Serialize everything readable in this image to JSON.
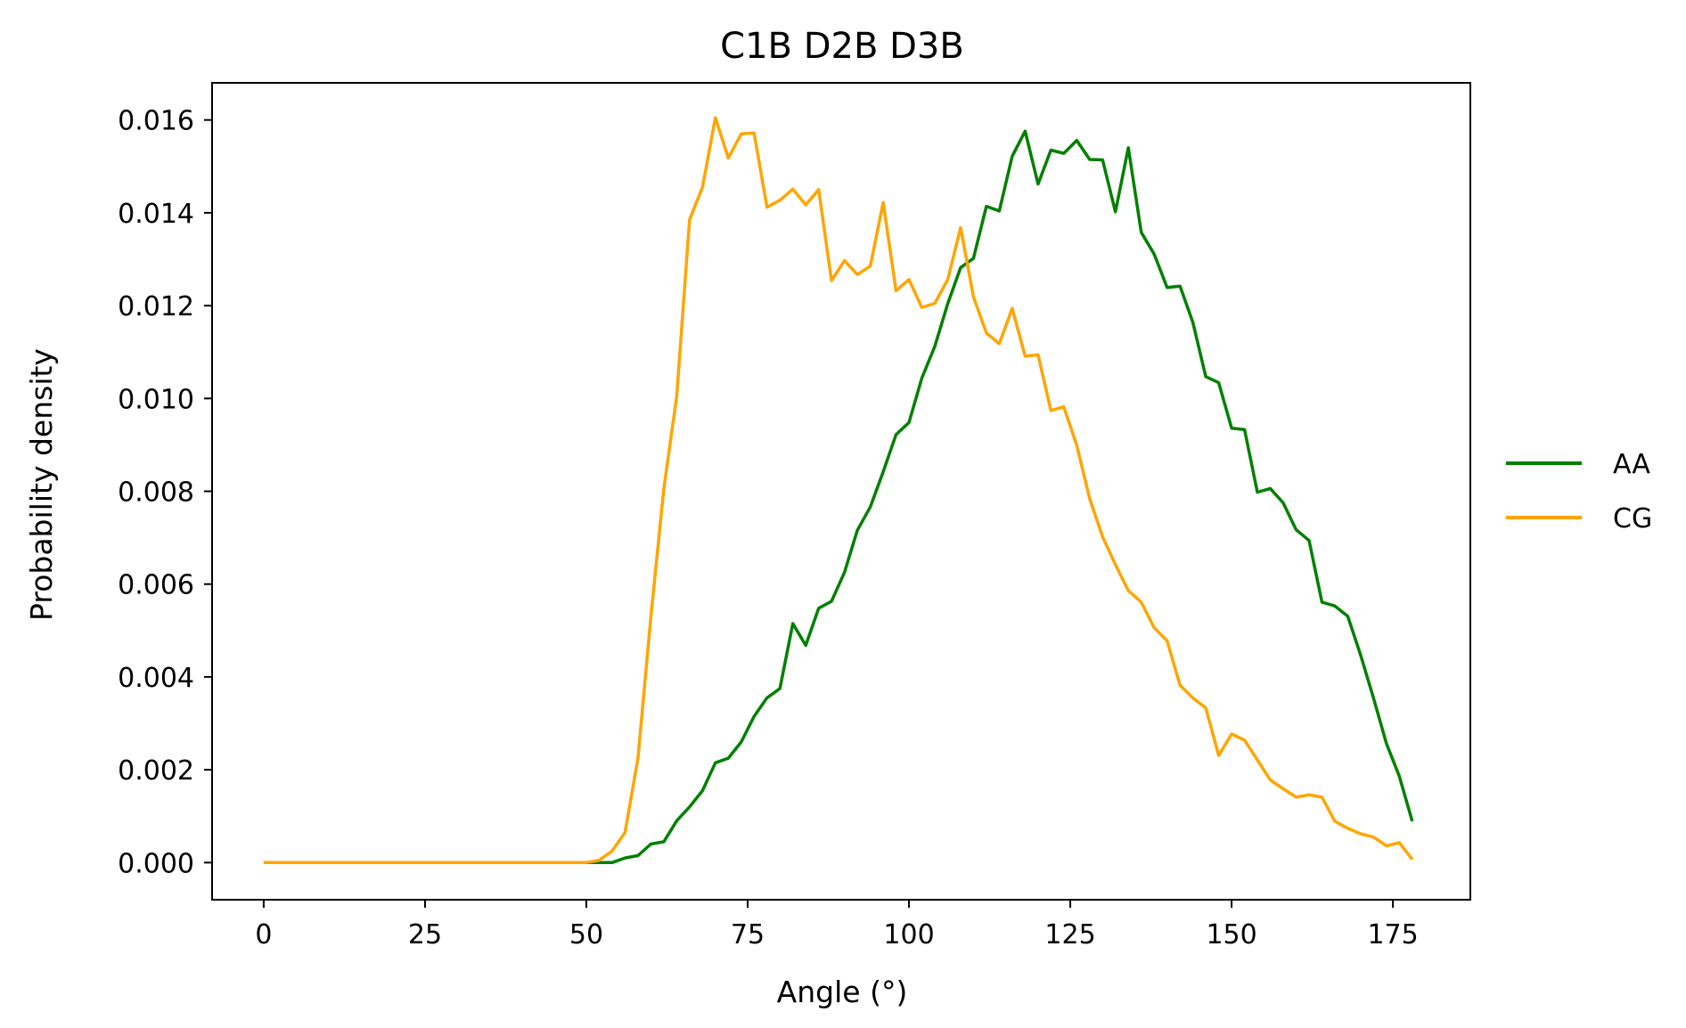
{
  "chart_data": {
    "type": "line",
    "title": "C1B D2B D3B",
    "xlabel": "Angle (°)",
    "ylabel": "Probability density",
    "xlim": [
      -8,
      187
    ],
    "ylim": [
      -0.0008,
      0.0168
    ],
    "xticks": [
      0,
      25,
      50,
      75,
      100,
      125,
      150,
      175
    ],
    "xtick_labels": [
      "0",
      "25",
      "50",
      "75",
      "100",
      "125",
      "150",
      "175"
    ],
    "yticks": [
      0.0,
      0.002,
      0.004,
      0.006,
      0.008,
      0.01,
      0.012,
      0.014,
      0.016
    ],
    "ytick_labels": [
      "0.000",
      "0.002",
      "0.004",
      "0.006",
      "0.008",
      "0.010",
      "0.012",
      "0.014",
      "0.016"
    ],
    "grid": false,
    "legend_position": "right, outside plot area",
    "x": [
      0,
      2,
      4,
      6,
      8,
      10,
      12,
      14,
      16,
      18,
      20,
      22,
      24,
      26,
      28,
      30,
      32,
      34,
      36,
      38,
      40,
      42,
      44,
      46,
      48,
      50,
      52,
      54,
      56,
      58,
      60,
      62,
      64,
      66,
      68,
      70,
      72,
      74,
      76,
      78,
      80,
      82,
      84,
      86,
      88,
      90,
      92,
      94,
      96,
      98,
      100,
      102,
      104,
      106,
      108,
      110,
      112,
      114,
      116,
      118,
      120,
      122,
      124,
      126,
      128,
      130,
      132,
      134,
      136,
      138,
      140,
      142,
      144,
      146,
      148,
      150,
      152,
      154,
      156,
      158,
      160,
      162,
      164,
      166,
      168,
      170,
      172,
      174,
      176,
      178
    ],
    "series": [
      {
        "name": "AA",
        "color": "#008000",
        "values": [
          0,
          0,
          0,
          0,
          0,
          0,
          0,
          0,
          0,
          0,
          0,
          0,
          0,
          0,
          0,
          0,
          0,
          0,
          0,
          0,
          0,
          0,
          0,
          0,
          0,
          0,
          0,
          0,
          0.0001,
          0.00015,
          0.0004,
          0.00045,
          0.0009,
          0.0012,
          0.00155,
          0.00215,
          0.00225,
          0.0026,
          0.00315,
          0.00355,
          0.00375,
          0.00515,
          0.00468,
          0.00548,
          0.00563,
          0.00625,
          0.00716,
          0.00766,
          0.00842,
          0.00922,
          0.00948,
          0.01044,
          0.01112,
          0.01204,
          0.01282,
          0.01302,
          0.01414,
          0.01404,
          0.01522,
          0.01576,
          0.01462,
          0.01535,
          0.01528,
          0.01556,
          0.01515,
          0.01514,
          0.01402,
          0.0154,
          0.01358,
          0.01311,
          0.01239,
          0.01242,
          0.01164,
          0.01047,
          0.01034,
          0.00936,
          0.00933,
          0.00798,
          0.00806,
          0.00775,
          0.00717,
          0.00694,
          0.00561,
          0.00553,
          0.00531,
          0.00447,
          0.00354,
          0.00256,
          0.00186,
          0.00089
        ]
      },
      {
        "name": "CG",
        "color": "#FFA500",
        "values": [
          0,
          0,
          0,
          0,
          0,
          0,
          0,
          0,
          0,
          0,
          0,
          0,
          0,
          0,
          0,
          0,
          0,
          0,
          0,
          0,
          0,
          0,
          0,
          0,
          0,
          0,
          5e-05,
          0.00025,
          0.00065,
          0.00225,
          0.0053,
          0.00805,
          0.01005,
          0.01385,
          0.01455,
          0.01605,
          0.01518,
          0.0157,
          0.01572,
          0.01412,
          0.01427,
          0.01451,
          0.01417,
          0.0145,
          0.01254,
          0.01297,
          0.01267,
          0.01285,
          0.01422,
          0.01232,
          0.01256,
          0.01196,
          0.01205,
          0.01256,
          0.01368,
          0.01219,
          0.01141,
          0.01118,
          0.01194,
          0.01091,
          0.01094,
          0.00974,
          0.00982,
          0.00899,
          0.00784,
          0.00702,
          0.00642,
          0.00586,
          0.00561,
          0.00506,
          0.00478,
          0.00382,
          0.00355,
          0.00333,
          0.00231,
          0.00277,
          0.00264,
          0.00221,
          0.00178,
          0.00159,
          0.00141,
          0.00146,
          0.00141,
          0.00089,
          0.00074,
          0.00062,
          0.00055,
          0.00036,
          0.00043,
          7e-05
        ]
      }
    ]
  }
}
